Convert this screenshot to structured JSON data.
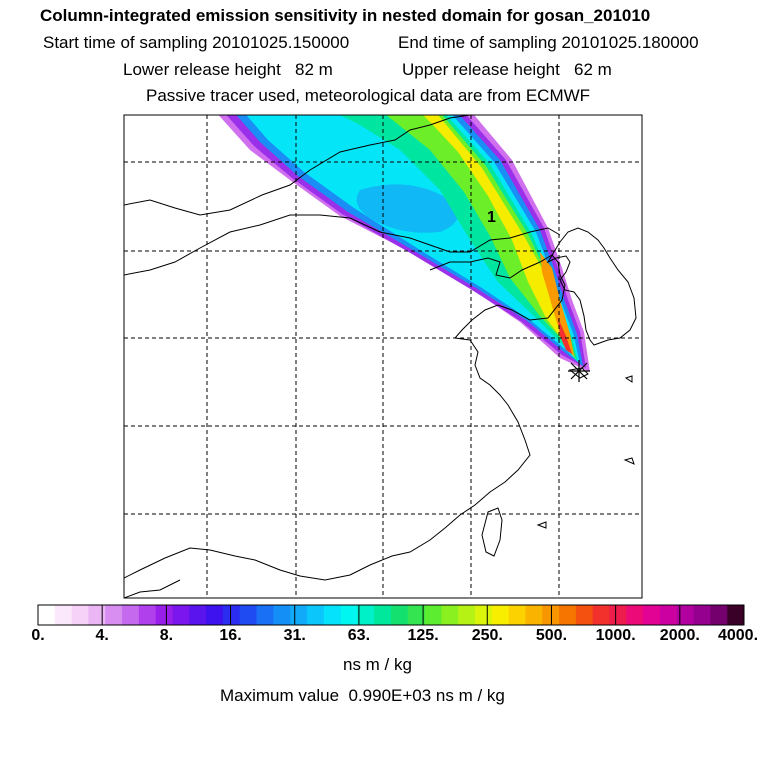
{
  "title": "Column-integrated emission sensitivity in nested domain for gosan_201010",
  "sampling": {
    "start": "Start time of sampling 20101025.150000",
    "end": "End time of sampling 20101025.180000"
  },
  "release": {
    "lower": "Lower release height   82 m",
    "upper": "Upper release height   62 m"
  },
  "tracer_note": "Passive tracer used, meteorological data are from ECMWF",
  "marker_label": "1",
  "colorbar": {
    "ticks": [
      "0.",
      "4.",
      "8.",
      "16.",
      "31.",
      "63.",
      "125.",
      "250.",
      "500.",
      "1000.",
      "2000.",
      "4000."
    ],
    "colors": [
      "#ffffff",
      "#fce8fc",
      "#f6d2f8",
      "#eab6f4",
      "#d88ef0",
      "#c56aee",
      "#b040ec",
      "#9a1eea",
      "#7c16ee",
      "#5a14ee",
      "#3e12ee",
      "#2a2cf0",
      "#1e4cf2",
      "#1a70f4",
      "#148ff6",
      "#10aaf8",
      "#0ac6fa",
      "#04e2fc",
      "#00f6f0",
      "#00f0c8",
      "#00e89c",
      "#14e070",
      "#34e450",
      "#5cec30",
      "#8af020",
      "#b6f214",
      "#daf40c",
      "#f8ee00",
      "#fcd200",
      "#fab400",
      "#f89600",
      "#f67400",
      "#f45010",
      "#f2302c",
      "#ee1c4c",
      "#ec0a78",
      "#e20294",
      "#cc00a0",
      "#b200a0",
      "#96008e",
      "#74006e",
      "#3a0028"
    ],
    "units": "ns m / kg",
    "maximum": "Maximum value  0.990E+03 ns m / kg"
  }
}
